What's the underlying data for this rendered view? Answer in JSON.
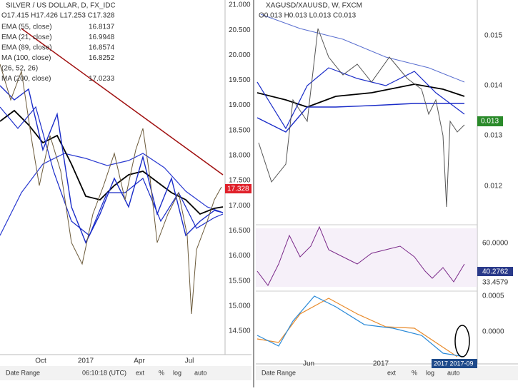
{
  "left": {
    "header": "SILVER / US DOLLAR, D, FX_IDC",
    "ohlc": "O17.415 H17.426 L17.253 C17.328",
    "indicators": [
      {
        "label": "EMA (55, close)",
        "value": "16.8137"
      },
      {
        "label": "EMA (21, close)",
        "value": "16.9948"
      },
      {
        "label": "EMA (89, close)",
        "value": "16.8574"
      },
      {
        "label": "MA (100, close)",
        "value": "16.8252"
      },
      {
        "label": "(26, 52, 26)",
        "value": ""
      },
      {
        "label": "MA (200, close)",
        "value": "17.0233"
      }
    ],
    "price_labels": [
      "21.000",
      "20.500",
      "20.000",
      "19.500",
      "19.000",
      "18.500",
      "18.000",
      "17.500",
      "17.000",
      "16.500",
      "16.000",
      "15.500",
      "15.000",
      "14.500"
    ],
    "last_price": "17.328",
    "time_labels": [
      "Oct",
      "2017",
      "Apr",
      "Jul"
    ],
    "footer": {
      "range": "Date Range",
      "clock": "06:10:18 (UTC)",
      "ext": "ext",
      "pct": "%",
      "log": "log",
      "auto": "auto"
    }
  },
  "right": {
    "header": "XAGUSD/XAUUSD, W, FXCM",
    "ohlc": "O0.013 H0.013 L0.013 C0.013",
    "price_labels": [
      "0.015",
      "0.014",
      "0.013",
      "0.012"
    ],
    "last_price": "0.013",
    "rsi_labels": [
      "60.0000",
      "40.2762",
      "33.4579"
    ],
    "macd_labels": [
      "0.0005",
      "0.0000"
    ],
    "time_labels": [
      "Jun",
      "2017"
    ],
    "cursor_label": "2017 2017-09",
    "footer": {
      "range": "Date Range",
      "ext": "ext",
      "pct": "%",
      "log": "log",
      "auto": "auto"
    }
  }
}
